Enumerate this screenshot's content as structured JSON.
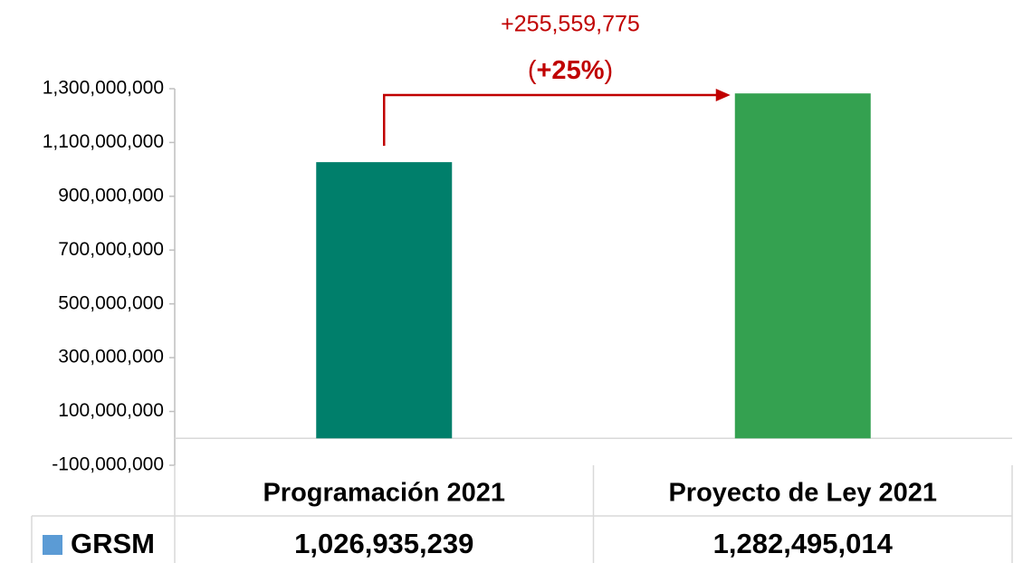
{
  "chart_data": {
    "type": "bar",
    "categories": [
      "Programación 2021",
      "Proyecto de Ley 2021"
    ],
    "series": [
      {
        "name": "GRSM",
        "color": "#5b9bd5",
        "values": [
          1026935239,
          1282495014
        ],
        "value_labels": [
          "1,026,935,239",
          "1,282,495,014"
        ]
      }
    ],
    "bar_colors": [
      "#007f6b",
      "#34a150"
    ],
    "ylim": [
      -100000000,
      1300000000
    ],
    "yticks": [
      {
        "value": -100000000,
        "label": "-100,000,000"
      },
      {
        "value": 100000000,
        "label": "100,000,000"
      },
      {
        "value": 300000000,
        "label": "300,000,000"
      },
      {
        "value": 500000000,
        "label": "500,000,000"
      },
      {
        "value": 700000000,
        "label": "700,000,000"
      },
      {
        "value": 900000000,
        "label": "900,000,000"
      },
      {
        "value": 1100000000,
        "label": "1,100,000,000"
      },
      {
        "value": 1300000000,
        "label": "1,300,000,000"
      }
    ],
    "annotation": {
      "difference": "+255,559,775",
      "percent_parts": [
        "(",
        "+25%",
        ")"
      ],
      "color": "#c00000"
    }
  }
}
